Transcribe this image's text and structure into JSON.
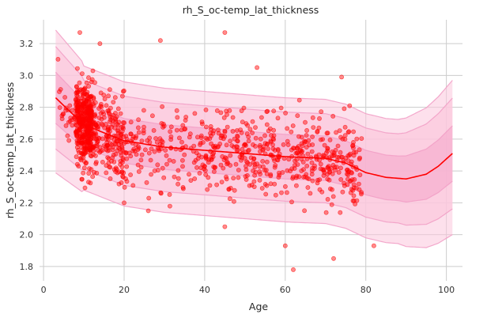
{
  "chart_data": {
    "type": "scatter",
    "title": "rh_S_oc-temp_lat_thickness",
    "xlabel": "Age",
    "ylabel": "rh_S_oc-temp_lat_thickness",
    "xlim": [
      -1,
      104
    ],
    "ylim": [
      1.71,
      3.35
    ],
    "xticks": [
      0,
      20,
      40,
      60,
      80,
      100
    ],
    "yticks": [
      1.8,
      2.0,
      2.2,
      2.4,
      2.6,
      2.8,
      3.0,
      3.2
    ],
    "xtick_labels": [
      "0",
      "20",
      "40",
      "60",
      "80",
      "100"
    ],
    "ytick_labels": [
      "1.8",
      "2.0",
      "2.2",
      "2.4",
      "2.6",
      "2.8",
      "3.0",
      "3.2"
    ],
    "grid": true,
    "point_count": 1200,
    "colors": {
      "points": "#ff0000",
      "mean_line": "#ff0000",
      "band_outer": "#fbc7dd",
      "band_inner": "#f5a8cb",
      "band_edge": "#f2a0c6",
      "grid": "#cccccc"
    },
    "centile_curve": {
      "x": [
        3,
        10,
        20,
        30,
        40,
        50,
        60,
        70,
        75,
        80,
        85,
        90,
        95,
        98,
        101.5
      ],
      "mean": [
        2.86,
        2.69,
        2.59,
        2.55,
        2.53,
        2.51,
        2.49,
        2.48,
        2.45,
        2.39,
        2.36,
        2.35,
        2.38,
        2.43,
        2.51
      ]
    },
    "centile_offsets": [
      -0.41,
      -0.28,
      -0.14,
      0.14,
      0.28,
      0.37
    ],
    "outliers": [
      {
        "x": 9,
        "y": 3.27
      },
      {
        "x": 14,
        "y": 3.2
      },
      {
        "x": 29,
        "y": 3.22
      },
      {
        "x": 45,
        "y": 3.27
      },
      {
        "x": 53,
        "y": 3.05
      },
      {
        "x": 62,
        "y": 1.78
      },
      {
        "x": 60,
        "y": 1.93
      },
      {
        "x": 72,
        "y": 1.85
      },
      {
        "x": 82,
        "y": 1.93
      },
      {
        "x": 26,
        "y": 2.15
      },
      {
        "x": 20,
        "y": 2.2
      },
      {
        "x": 45,
        "y": 2.05
      },
      {
        "x": 76,
        "y": 2.81
      },
      {
        "x": 74,
        "y": 2.99
      }
    ]
  }
}
